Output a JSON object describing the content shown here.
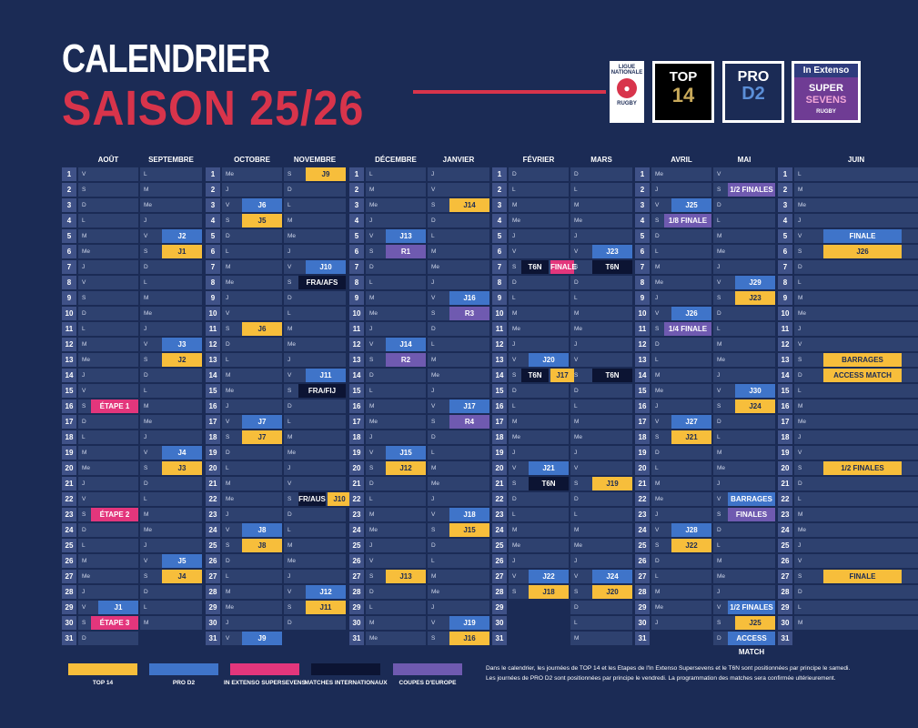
{
  "title": {
    "line1": "CALENDRIER",
    "line2": "SAISON 25/26"
  },
  "logos": {
    "ligue": [
      "LIGUE",
      "NATIONALE",
      "RUGBY"
    ],
    "top14": [
      "TOP",
      "14"
    ],
    "prod2": [
      "PRO",
      "D2"
    ],
    "super": [
      "In Extenso",
      "SUPER",
      "SEVENS",
      "RUGBY"
    ]
  },
  "colors": {
    "background": "#1b2b55",
    "top14": "#f7be3b",
    "prod2": "#3f74c9",
    "supersevens": "#e3367c",
    "international": "#0c1433",
    "europe": "#6f5ab0",
    "accent": "#d8344b"
  },
  "months": [
    [
      "AOÛT",
      "SEPTEMBRE"
    ],
    [
      "OCTOBRE",
      "NOVEMBRE"
    ],
    [
      "DÉCEMBRE",
      "JANVIER"
    ],
    [
      "FÉVRIER",
      "MARS"
    ],
    [
      "AVRIL",
      "MAI"
    ],
    [
      "JUIN",
      ""
    ]
  ],
  "blocks": [
    {
      "m1_days": [
        "V",
        "S",
        "D",
        "L",
        "M",
        "Me",
        "J",
        "V",
        "S",
        "D",
        "L",
        "M",
        "Me",
        "J",
        "V",
        "S",
        "D",
        "L",
        "M",
        "Me",
        "J",
        "V",
        "S",
        "D",
        "L",
        "M",
        "Me",
        "J",
        "V",
        "S",
        "D"
      ],
      "m2_days": [
        "L",
        "M",
        "Me",
        "J",
        "V",
        "S",
        "D",
        "L",
        "M",
        "Me",
        "J",
        "V",
        "S",
        "D",
        "L",
        "M",
        "Me",
        "J",
        "V",
        "S",
        "D",
        "L",
        "M",
        "Me",
        "J",
        "V",
        "S",
        "D",
        "L",
        "M",
        ""
      ],
      "events": [
        {
          "row": 5,
          "col": 2,
          "text": "J2",
          "type": "pd2"
        },
        {
          "row": 6,
          "col": 2,
          "text": "J1",
          "type": "t14"
        },
        {
          "row": 12,
          "col": 2,
          "text": "J3",
          "type": "pd2"
        },
        {
          "row": 13,
          "col": 2,
          "text": "J2",
          "type": "t14"
        },
        {
          "row": 16,
          "col": 1,
          "text": "ÉTAPE 1",
          "type": "sev"
        },
        {
          "row": 19,
          "col": 2,
          "text": "J4",
          "type": "pd2"
        },
        {
          "row": 20,
          "col": 2,
          "text": "J3",
          "type": "t14"
        },
        {
          "row": 23,
          "col": 1,
          "text": "ÉTAPE 2",
          "type": "sev"
        },
        {
          "row": 26,
          "col": 2,
          "text": "J5",
          "type": "pd2"
        },
        {
          "row": 27,
          "col": 2,
          "text": "J4",
          "type": "t14"
        },
        {
          "row": 29,
          "col": 1,
          "text": "J1",
          "type": "pd2"
        },
        {
          "row": 30,
          "col": 1,
          "text": "ÉTAPE 3",
          "type": "sev"
        }
      ]
    },
    {
      "m1_days": [
        "Me",
        "J",
        "V",
        "S",
        "D",
        "L",
        "M",
        "Me",
        "J",
        "V",
        "S",
        "D",
        "L",
        "M",
        "Me",
        "J",
        "V",
        "S",
        "D",
        "L",
        "M",
        "Me",
        "J",
        "V",
        "S",
        "D",
        "L",
        "M",
        "Me",
        "J",
        "V"
      ],
      "m2_days": [
        "S",
        "D",
        "L",
        "M",
        "Me",
        "J",
        "V",
        "S",
        "D",
        "L",
        "M",
        "Me",
        "J",
        "V",
        "S",
        "D",
        "L",
        "M",
        "Me",
        "J",
        "V",
        "S",
        "D",
        "L",
        "M",
        "Me",
        "J",
        "V",
        "S",
        "D",
        ""
      ],
      "events": [
        {
          "row": 1,
          "col": 2,
          "text": "J9",
          "type": "t14"
        },
        {
          "row": 3,
          "col": 1,
          "text": "J6",
          "type": "pd2"
        },
        {
          "row": 4,
          "col": 1,
          "text": "J5",
          "type": "t14"
        },
        {
          "row": 7,
          "col": 2,
          "text": "J10",
          "type": "pd2"
        },
        {
          "row": 8,
          "col": 2,
          "text": "FRA/AFS",
          "type": "int"
        },
        {
          "row": 11,
          "col": 1,
          "text": "J6",
          "type": "t14"
        },
        {
          "row": 14,
          "col": 2,
          "text": "J11",
          "type": "pd2"
        },
        {
          "row": 15,
          "col": 2,
          "text": "FRA/FIJ",
          "type": "int"
        },
        {
          "row": 17,
          "col": 1,
          "text": "J7",
          "type": "pd2"
        },
        {
          "row": 18,
          "col": 1,
          "text": "J7",
          "type": "t14"
        },
        {
          "row": 22,
          "col": 2,
          "text": "FR/AUS",
          "type": "int",
          "split": "J10"
        },
        {
          "row": 24,
          "col": 1,
          "text": "J8",
          "type": "pd2"
        },
        {
          "row": 25,
          "col": 1,
          "text": "J8",
          "type": "t14"
        },
        {
          "row": 28,
          "col": 2,
          "text": "J12",
          "type": "pd2"
        },
        {
          "row": 29,
          "col": 2,
          "text": "J11",
          "type": "t14"
        },
        {
          "row": 31,
          "col": 1,
          "text": "J9",
          "type": "pd2"
        }
      ]
    },
    {
      "m1_days": [
        "L",
        "M",
        "Me",
        "J",
        "V",
        "S",
        "D",
        "L",
        "M",
        "Me",
        "J",
        "V",
        "S",
        "D",
        "L",
        "M",
        "Me",
        "J",
        "V",
        "S",
        "D",
        "L",
        "M",
        "Me",
        "J",
        "V",
        "S",
        "D",
        "L",
        "M",
        "Me"
      ],
      "m2_days": [
        "J",
        "V",
        "S",
        "D",
        "L",
        "M",
        "Me",
        "J",
        "V",
        "S",
        "D",
        "L",
        "M",
        "Me",
        "J",
        "V",
        "S",
        "D",
        "L",
        "M",
        "Me",
        "J",
        "V",
        "S",
        "D",
        "L",
        "M",
        "Me",
        "J",
        "V",
        "S"
      ],
      "events": [
        {
          "row": 3,
          "col": 2,
          "text": "J14",
          "type": "t14"
        },
        {
          "row": 5,
          "col": 1,
          "text": "J13",
          "type": "pd2"
        },
        {
          "row": 6,
          "col": 1,
          "text": "R1",
          "type": "cup"
        },
        {
          "row": 9,
          "col": 2,
          "text": "J16",
          "type": "pd2"
        },
        {
          "row": 10,
          "col": 2,
          "text": "R3",
          "type": "cup"
        },
        {
          "row": 12,
          "col": 1,
          "text": "J14",
          "type": "pd2"
        },
        {
          "row": 13,
          "col": 1,
          "text": "R2",
          "type": "cup"
        },
        {
          "row": 16,
          "col": 2,
          "text": "J17",
          "type": "pd2"
        },
        {
          "row": 17,
          "col": 2,
          "text": "R4",
          "type": "cup"
        },
        {
          "row": 19,
          "col": 1,
          "text": "J15",
          "type": "pd2"
        },
        {
          "row": 20,
          "col": 1,
          "text": "J12",
          "type": "t14"
        },
        {
          "row": 23,
          "col": 2,
          "text": "J18",
          "type": "pd2"
        },
        {
          "row": 24,
          "col": 2,
          "text": "J15",
          "type": "t14"
        },
        {
          "row": 27,
          "col": 1,
          "text": "J13",
          "type": "t14"
        },
        {
          "row": 30,
          "col": 2,
          "text": "J19",
          "type": "pd2"
        },
        {
          "row": 31,
          "col": 2,
          "text": "J16",
          "type": "t14"
        }
      ]
    },
    {
      "m1_days": [
        "D",
        "L",
        "M",
        "Me",
        "J",
        "V",
        "S",
        "D",
        "L",
        "M",
        "Me",
        "J",
        "V",
        "S",
        "D",
        "L",
        "M",
        "Me",
        "J",
        "V",
        "S",
        "D",
        "L",
        "M",
        "Me",
        "J",
        "V",
        "S",
        "",
        "",
        ""
      ],
      "m2_days": [
        "D",
        "L",
        "M",
        "Me",
        "J",
        "V",
        "S",
        "D",
        "L",
        "M",
        "Me",
        "J",
        "V",
        "S",
        "D",
        "L",
        "M",
        "Me",
        "J",
        "V",
        "S",
        "D",
        "L",
        "M",
        "Me",
        "J",
        "V",
        "S",
        "D",
        "L",
        "M"
      ],
      "events": [
        {
          "row": 6,
          "col": 2,
          "text": "J23",
          "type": "pd2"
        },
        {
          "row": 7,
          "col": 1,
          "text": "T6N",
          "type": "int",
          "split": "FINALE",
          "splitType": "sev"
        },
        {
          "row": 7,
          "col": 2,
          "text": "T6N",
          "type": "int"
        },
        {
          "row": 13,
          "col": 1,
          "text": "J20",
          "type": "pd2"
        },
        {
          "row": 14,
          "col": 1,
          "text": "T6N",
          "type": "int",
          "split": "J17",
          "splitType": "t14"
        },
        {
          "row": 14,
          "col": 2,
          "text": "T6N",
          "type": "int"
        },
        {
          "row": 20,
          "col": 1,
          "text": "J21",
          "type": "pd2"
        },
        {
          "row": 21,
          "col": 1,
          "text": "T6N",
          "type": "int"
        },
        {
          "row": 21,
          "col": 2,
          "text": "J19",
          "type": "t14"
        },
        {
          "row": 27,
          "col": 1,
          "text": "J22",
          "type": "pd2"
        },
        {
          "row": 27,
          "col": 2,
          "text": "J24",
          "type": "pd2"
        },
        {
          "row": 28,
          "col": 1,
          "text": "J18",
          "type": "t14"
        },
        {
          "row": 28,
          "col": 2,
          "text": "J20",
          "type": "t14"
        }
      ]
    },
    {
      "m1_days": [
        "Me",
        "J",
        "V",
        "S",
        "D",
        "L",
        "M",
        "Me",
        "J",
        "V",
        "S",
        "D",
        "L",
        "M",
        "Me",
        "J",
        "V",
        "S",
        "D",
        "L",
        "M",
        "Me",
        "J",
        "V",
        "S",
        "D",
        "L",
        "M",
        "Me",
        "J",
        ""
      ],
      "m2_days": [
        "V",
        "S",
        "D",
        "L",
        "M",
        "Me",
        "J",
        "V",
        "S",
        "D",
        "L",
        "M",
        "Me",
        "J",
        "V",
        "S",
        "D",
        "L",
        "M",
        "Me",
        "J",
        "V",
        "S",
        "D",
        "L",
        "M",
        "Me",
        "J",
        "V",
        "S",
        "D"
      ],
      "events": [
        {
          "row": 2,
          "col": 2,
          "text": "1/2 FINALES",
          "type": "cup"
        },
        {
          "row": 3,
          "col": 1,
          "text": "J25",
          "type": "pd2"
        },
        {
          "row": 4,
          "col": 1,
          "text": "1/8 FINALE",
          "type": "cup"
        },
        {
          "row": 8,
          "col": 2,
          "text": "J29",
          "type": "pd2"
        },
        {
          "row": 9,
          "col": 2,
          "text": "J23",
          "type": "t14"
        },
        {
          "row": 10,
          "col": 1,
          "text": "J26",
          "type": "pd2"
        },
        {
          "row": 11,
          "col": 1,
          "text": "1/4 FINALE",
          "type": "cup"
        },
        {
          "row": 15,
          "col": 2,
          "text": "J30",
          "type": "pd2"
        },
        {
          "row": 16,
          "col": 2,
          "text": "J24",
          "type": "t14"
        },
        {
          "row": 17,
          "col": 1,
          "text": "J27",
          "type": "pd2"
        },
        {
          "row": 18,
          "col": 1,
          "text": "J21",
          "type": "t14"
        },
        {
          "row": 22,
          "col": 2,
          "text": "BARRAGES",
          "type": "pd2"
        },
        {
          "row": 23,
          "col": 2,
          "text": "FINALES",
          "type": "cup"
        },
        {
          "row": 24,
          "col": 1,
          "text": "J28",
          "type": "pd2"
        },
        {
          "row": 25,
          "col": 1,
          "text": "J22",
          "type": "t14"
        },
        {
          "row": 29,
          "col": 2,
          "text": "1/2 FINALES",
          "type": "pd2"
        },
        {
          "row": 30,
          "col": 2,
          "text": "J25",
          "type": "t14"
        },
        {
          "row": 31,
          "col": 2,
          "text": "ACCESS MATCH",
          "type": "pd2"
        }
      ]
    },
    {
      "m1_days": [
        "L",
        "M",
        "Me",
        "J",
        "V",
        "S",
        "D",
        "L",
        "M",
        "Me",
        "J",
        "V",
        "S",
        "D",
        "L",
        "M",
        "Me",
        "J",
        "V",
        "S",
        "D",
        "L",
        "M",
        "Me",
        "J",
        "V",
        "S",
        "D",
        "L",
        "M",
        ""
      ],
      "m2_days": [],
      "events": [
        {
          "row": 5,
          "col": 2,
          "text": "FINALE",
          "type": "pd2"
        },
        {
          "row": 6,
          "col": 2,
          "text": "J26",
          "type": "t14"
        },
        {
          "row": 13,
          "col": 2,
          "text": "BARRAGES",
          "type": "t14"
        },
        {
          "row": 14,
          "col": 2,
          "text": "ACCESS MATCH",
          "type": "t14"
        },
        {
          "row": 20,
          "col": 2,
          "text": "1/2 FINALES",
          "type": "t14"
        },
        {
          "row": 27,
          "col": 2,
          "text": "FINALE",
          "type": "t14"
        }
      ]
    }
  ],
  "legend": [
    {
      "label": "TOP 14",
      "type": "t14"
    },
    {
      "label": "PRO D2",
      "type": "pd2"
    },
    {
      "label": "IN EXTENSO SUPERSEVENS",
      "type": "sev"
    },
    {
      "label": "MATCHES INTERNATIONAUX",
      "type": "int"
    },
    {
      "label": "COUPES D'EUROPE",
      "type": "cup"
    }
  ],
  "note": [
    "Dans le calendrier, les journées de TOP 14 et les Etapes de l'In Extenso Supersevens et le T6N sont positionnées par principe le samedi.",
    "Les journées de PRO D2 sont positionnées par principe le vendredi. La programmation des matches sera confirmée ultérieurement."
  ]
}
